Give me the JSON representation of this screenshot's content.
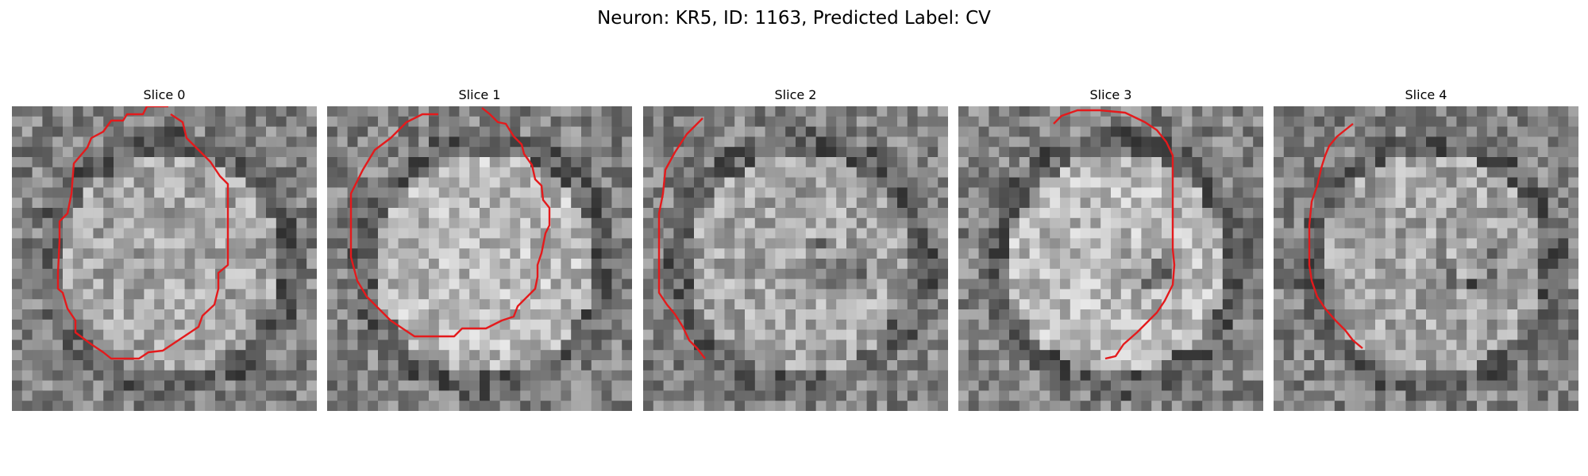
{
  "figure": {
    "title": "Neuron: KR5, ID: 1163, Predicted Label: CV",
    "contour_color": "#e41a1c"
  },
  "panels": [
    {
      "title": "Slice 0",
      "brightness": "medium",
      "seed": 11
    },
    {
      "title": "Slice 1",
      "brightness": "bright",
      "seed": 23
    },
    {
      "title": "Slice 2",
      "brightness": "medium",
      "seed": 37
    },
    {
      "title": "Slice 3",
      "brightness": "bright",
      "seed": 41
    },
    {
      "title": "Slice 4",
      "brightness": "medium",
      "seed": 53
    }
  ]
}
